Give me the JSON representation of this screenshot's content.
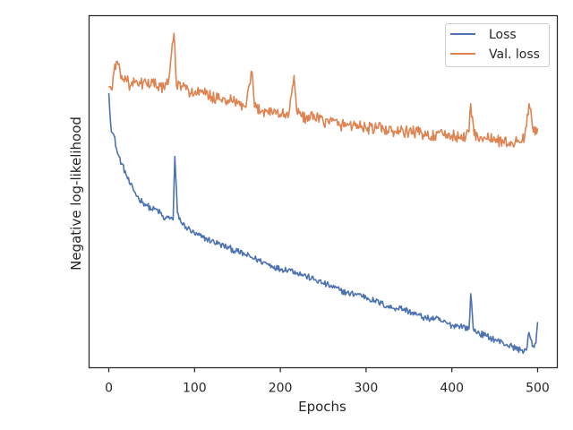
{
  "chart_data": {
    "type": "line",
    "title": "",
    "xlabel": "Epochs",
    "ylabel": "Negative log-likelihood",
    "xlim": [
      -23,
      523
    ],
    "ylim": [
      0,
      1
    ],
    "x_ticks": [
      "0",
      "100",
      "200",
      "300",
      "400",
      "500"
    ],
    "y_ticks": [],
    "grid": false,
    "legend_position": "top-right",
    "series": [
      {
        "name": "Loss",
        "color": "#4c72b0",
        "points": [
          [
            0,
            0.78
          ],
          [
            3,
            0.67
          ],
          [
            6,
            0.66
          ],
          [
            10,
            0.61
          ],
          [
            15,
            0.58
          ],
          [
            20,
            0.55
          ],
          [
            25,
            0.52
          ],
          [
            30,
            0.5
          ],
          [
            35,
            0.48
          ],
          [
            40,
            0.47
          ],
          [
            45,
            0.46
          ],
          [
            50,
            0.45
          ],
          [
            55,
            0.45
          ],
          [
            60,
            0.44
          ],
          [
            65,
            0.42
          ],
          [
            70,
            0.43
          ],
          [
            75,
            0.42
          ],
          [
            77,
            0.6
          ],
          [
            80,
            0.44
          ],
          [
            85,
            0.41
          ],
          [
            90,
            0.4
          ],
          [
            100,
            0.38
          ],
          [
            110,
            0.37
          ],
          [
            120,
            0.36
          ],
          [
            130,
            0.35
          ],
          [
            140,
            0.34
          ],
          [
            150,
            0.33
          ],
          [
            160,
            0.32
          ],
          [
            170,
            0.31
          ],
          [
            180,
            0.3
          ],
          [
            190,
            0.29
          ],
          [
            200,
            0.28
          ],
          [
            210,
            0.28
          ],
          [
            220,
            0.27
          ],
          [
            230,
            0.26
          ],
          [
            240,
            0.25
          ],
          [
            250,
            0.24
          ],
          [
            260,
            0.23
          ],
          [
            270,
            0.22
          ],
          [
            280,
            0.21
          ],
          [
            290,
            0.21
          ],
          [
            300,
            0.2
          ],
          [
            310,
            0.19
          ],
          [
            320,
            0.18
          ],
          [
            330,
            0.17
          ],
          [
            340,
            0.17
          ],
          [
            350,
            0.16
          ],
          [
            360,
            0.15
          ],
          [
            370,
            0.14
          ],
          [
            380,
            0.14
          ],
          [
            390,
            0.13
          ],
          [
            400,
            0.12
          ],
          [
            410,
            0.12
          ],
          [
            420,
            0.11
          ],
          [
            422,
            0.21
          ],
          [
            425,
            0.11
          ],
          [
            430,
            0.1
          ],
          [
            440,
            0.09
          ],
          [
            450,
            0.08
          ],
          [
            460,
            0.07
          ],
          [
            470,
            0.06
          ],
          [
            480,
            0.05
          ],
          [
            487,
            0.05
          ],
          [
            490,
            0.1
          ],
          [
            494,
            0.06
          ],
          [
            498,
            0.07
          ],
          [
            500,
            0.13
          ]
        ]
      },
      {
        "name": "Val. loss",
        "color": "#dd8452",
        "points": [
          [
            0,
            0.8
          ],
          [
            3,
            0.79
          ],
          [
            6,
            0.84
          ],
          [
            10,
            0.87
          ],
          [
            15,
            0.83
          ],
          [
            20,
            0.82
          ],
          [
            25,
            0.8
          ],
          [
            30,
            0.81
          ],
          [
            35,
            0.8
          ],
          [
            40,
            0.81
          ],
          [
            45,
            0.8
          ],
          [
            50,
            0.82
          ],
          [
            55,
            0.8
          ],
          [
            60,
            0.8
          ],
          [
            65,
            0.79
          ],
          [
            70,
            0.82
          ],
          [
            73,
            0.89
          ],
          [
            76,
            0.95
          ],
          [
            79,
            0.8
          ],
          [
            85,
            0.8
          ],
          [
            90,
            0.79
          ],
          [
            100,
            0.78
          ],
          [
            110,
            0.78
          ],
          [
            120,
            0.77
          ],
          [
            130,
            0.76
          ],
          [
            140,
            0.76
          ],
          [
            150,
            0.75
          ],
          [
            160,
            0.74
          ],
          [
            167,
            0.84
          ],
          [
            170,
            0.74
          ],
          [
            180,
            0.73
          ],
          [
            190,
            0.73
          ],
          [
            200,
            0.72
          ],
          [
            210,
            0.72
          ],
          [
            216,
            0.83
          ],
          [
            220,
            0.72
          ],
          [
            230,
            0.71
          ],
          [
            240,
            0.71
          ],
          [
            250,
            0.7
          ],
          [
            260,
            0.7
          ],
          [
            270,
            0.69
          ],
          [
            280,
            0.69
          ],
          [
            290,
            0.69
          ],
          [
            300,
            0.68
          ],
          [
            310,
            0.68
          ],
          [
            320,
            0.68
          ],
          [
            330,
            0.67
          ],
          [
            340,
            0.67
          ],
          [
            350,
            0.67
          ],
          [
            360,
            0.67
          ],
          [
            370,
            0.66
          ],
          [
            380,
            0.66
          ],
          [
            390,
            0.66
          ],
          [
            400,
            0.66
          ],
          [
            410,
            0.65
          ],
          [
            420,
            0.67
          ],
          [
            422,
            0.75
          ],
          [
            426,
            0.66
          ],
          [
            430,
            0.66
          ],
          [
            440,
            0.65
          ],
          [
            450,
            0.65
          ],
          [
            460,
            0.64
          ],
          [
            470,
            0.64
          ],
          [
            480,
            0.64
          ],
          [
            485,
            0.66
          ],
          [
            490,
            0.75
          ],
          [
            495,
            0.67
          ],
          [
            500,
            0.68
          ]
        ]
      }
    ]
  }
}
